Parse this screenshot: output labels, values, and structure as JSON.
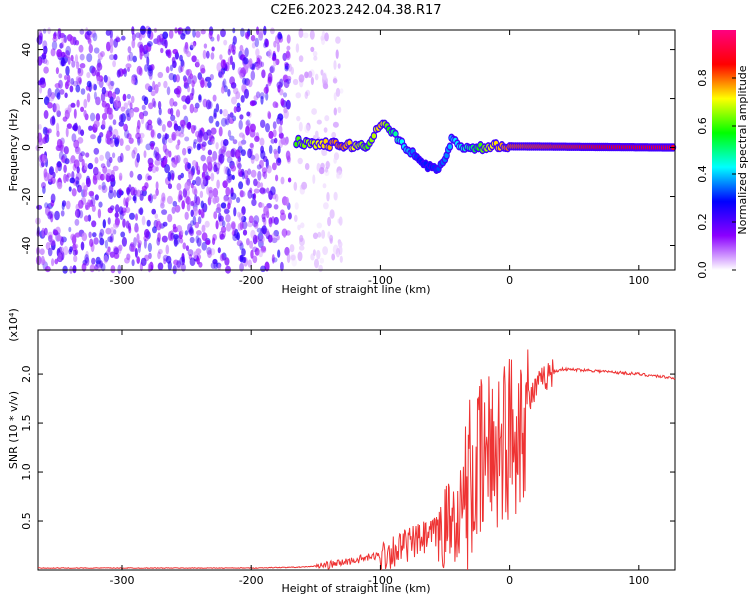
{
  "title": "C2E6.2023.242.04.38.R17",
  "chart_data": [
    {
      "type": "heatmap",
      "xlabel": "Height of straight line (km)",
      "ylabel": "Frequency (Hz)",
      "xlim": [
        -365,
        128
      ],
      "ylim": [
        -50,
        48
      ],
      "xticks": [
        -300,
        -200,
        -100,
        0,
        100
      ],
      "yticks": [
        -40,
        -20,
        0,
        20,
        40
      ],
      "colorbar": {
        "label": "Normalized spectral amplitude",
        "range": [
          0,
          1
        ],
        "ticks": [
          0.0,
          0.2,
          0.4,
          0.6,
          0.8
        ],
        "colormap": [
          "#ffffff",
          "#8b00ff",
          "#0000ff",
          "#00ffff",
          "#00ff00",
          "#ffff00",
          "#ff0000",
          "#ff0080"
        ]
      },
      "regions": [
        {
          "name": "noise",
          "x_range": [
            -365,
            -170
          ],
          "y_range": [
            -50,
            48
          ],
          "amplitude": 0.2
        },
        {
          "name": "sparse-noise",
          "x_range": [
            -170,
            -130
          ],
          "y_range": [
            -50,
            48
          ],
          "amplitude": 0.05
        }
      ],
      "signal_trace": [
        {
          "x": -165,
          "y": 2.5,
          "a": 0.6
        },
        {
          "x": -150,
          "y": 1.5,
          "a": 0.7
        },
        {
          "x": -130,
          "y": 1,
          "a": 0.8
        },
        {
          "x": -110,
          "y": 0.5,
          "a": 0.6
        },
        {
          "x": -100,
          "y": 10,
          "a": 0.75
        },
        {
          "x": -90,
          "y": 6,
          "a": 0.5
        },
        {
          "x": -80,
          "y": 0,
          "a": 0.4
        },
        {
          "x": -70,
          "y": -5,
          "a": 0.3
        },
        {
          "x": -60,
          "y": -9,
          "a": 0.3
        },
        {
          "x": -50,
          "y": -6,
          "a": 0.35
        },
        {
          "x": -45,
          "y": 3,
          "a": 0.4
        },
        {
          "x": -30,
          "y": -1,
          "a": 0.5
        },
        {
          "x": -15,
          "y": 0.5,
          "a": 0.7
        },
        {
          "x": 0,
          "y": 0.5,
          "a": 0.8
        },
        {
          "x": 128,
          "y": 0,
          "a": 0.9
        }
      ]
    },
    {
      "type": "line",
      "xlabel": "Height of straight line (km)",
      "ylabel": "SNR (10 * v/v)",
      "y_multiplier": "(x10⁴)",
      "xlim": [
        -365,
        128
      ],
      "ylim": [
        0,
        2.45
      ],
      "xticks": [
        -300,
        -200,
        -100,
        0,
        100
      ],
      "yticks": [
        0.5,
        1.0,
        1.5,
        2.0
      ],
      "line_color": "#ee3333",
      "x": [
        -365,
        -200,
        -160,
        -140,
        -120,
        -100,
        -80,
        -60,
        -40,
        -30,
        -20,
        -10,
        0,
        10,
        20,
        30,
        40,
        60,
        80,
        100,
        128
      ],
      "y": [
        0.02,
        0.02,
        0.03,
        0.05,
        0.1,
        0.15,
        0.25,
        0.35,
        0.55,
        0.9,
        1.1,
        1.3,
        1.35,
        1.6,
        1.85,
        2.0,
        2.05,
        2.04,
        2.02,
        2.0,
        1.96
      ]
    }
  ]
}
